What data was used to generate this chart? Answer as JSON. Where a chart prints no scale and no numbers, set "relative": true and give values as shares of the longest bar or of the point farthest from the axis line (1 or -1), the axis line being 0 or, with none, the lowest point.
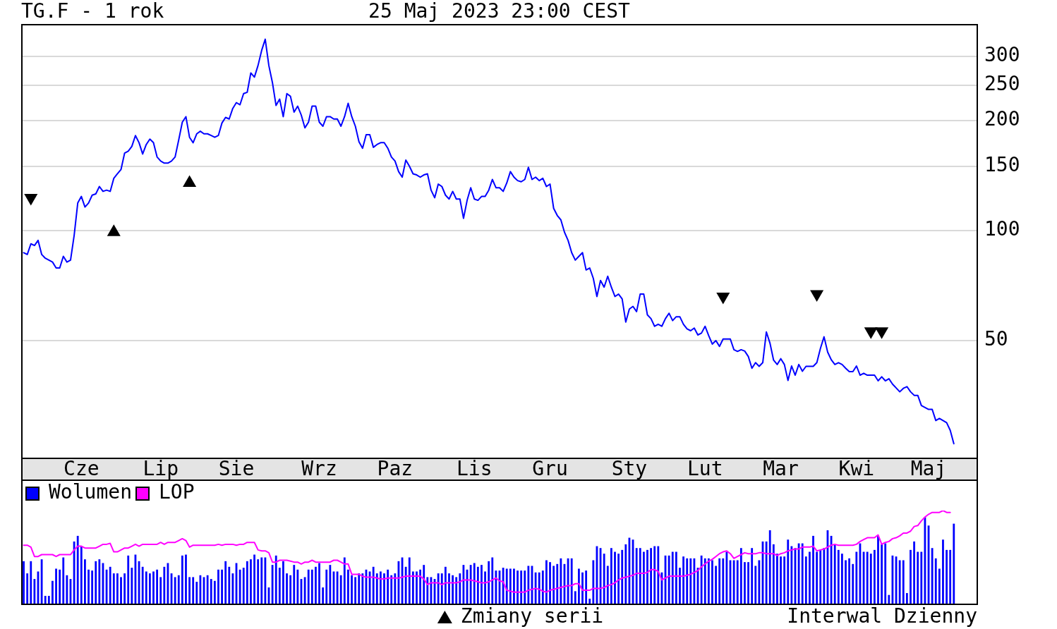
{
  "chart_data": [
    {
      "type": "line",
      "title": "TG.F - 1 rok",
      "subtitle": "25 Maj 2023 23:00 CEST",
      "categories": [
        null,
        null,
        null,
        null,
        null,
        null,
        null,
        null,
        null,
        null,
        null,
        null,
        null,
        null,
        null,
        null,
        "Cze",
        null,
        null,
        null,
        null,
        null,
        null,
        null,
        null,
        null,
        null,
        null,
        null,
        null,
        null,
        null,
        null,
        null,
        null,
        null,
        null,
        null,
        "Lip",
        null,
        null,
        null,
        null,
        null,
        null,
        null,
        null,
        null,
        null,
        null,
        null,
        null,
        null,
        null,
        null,
        null,
        null,
        null,
        null,
        "Sie",
        null,
        null,
        null,
        null,
        null,
        null,
        null,
        null,
        null,
        null,
        null,
        null,
        null,
        null,
        null,
        null,
        null,
        null,
        null,
        null,
        null,
        null,
        "Wrz",
        null,
        null,
        null,
        null,
        null,
        null,
        null,
        null,
        null,
        null,
        null,
        null,
        null,
        null,
        null,
        null,
        null,
        null,
        null,
        null,
        "Paz",
        null,
        null,
        null,
        null,
        null,
        null,
        null,
        null,
        null,
        null,
        null,
        null,
        null,
        null,
        null,
        null,
        null,
        null,
        null,
        null,
        null,
        "Lis",
        null,
        null,
        null,
        null,
        null,
        null,
        null,
        null,
        null,
        null,
        null,
        null,
        null,
        null,
        null,
        null,
        null,
        null,
        null,
        null,
        "Gru",
        null,
        null,
        null,
        null,
        null,
        null,
        null,
        null,
        null,
        null,
        null,
        null,
        null,
        null,
        null,
        null,
        null,
        null,
        null,
        null,
        null,
        "Sty",
        null,
        null,
        null,
        null,
        null,
        null,
        null,
        null,
        null,
        null,
        null,
        null,
        null,
        null,
        null,
        null,
        null,
        null,
        null,
        null,
        "Lut",
        null,
        null,
        null,
        null,
        null,
        null,
        null,
        null,
        null,
        null,
        null,
        null,
        null,
        null,
        null,
        null,
        null,
        null,
        null,
        null,
        "Mar",
        null,
        null,
        null,
        null,
        null,
        null,
        null,
        null,
        null,
        null,
        null,
        null,
        null,
        null,
        null,
        null,
        null,
        null,
        null,
        null,
        "Kwi",
        null,
        null,
        null,
        null,
        null,
        null,
        null,
        null,
        null,
        null,
        null,
        null,
        null,
        null,
        null,
        null,
        null,
        null,
        null,
        "Maj",
        null,
        null,
        null,
        null,
        null,
        null,
        null,
        null,
        null,
        null,
        null,
        null,
        null
      ],
      "series": [
        {
          "color": "#0000ff",
          "values": [
            87,
            86,
            92,
            91,
            94,
            86,
            84,
            83,
            82,
            79,
            79,
            85,
            82,
            83,
            97,
            119,
            124,
            116,
            119,
            125,
            126,
            132,
            128,
            129,
            128,
            139,
            143,
            147,
            163,
            165,
            170,
            182,
            174,
            162,
            172,
            178,
            174,
            159,
            155,
            153,
            153,
            155,
            159,
            177,
            198,
            205,
            180,
            174,
            184,
            187,
            184,
            184,
            182,
            180,
            182,
            197,
            204,
            202,
            216,
            224,
            221,
            237,
            239,
            270,
            263,
            283,
            311,
            334,
            283,
            254,
            220,
            229,
            205,
            237,
            233,
            211,
            219,
            207,
            191,
            198,
            219,
            219,
            198,
            193,
            205,
            205,
            202,
            202,
            193,
            205,
            223,
            205,
            193,
            175,
            168,
            183,
            183,
            169,
            172,
            174,
            174,
            168,
            159,
            155,
            145,
            140,
            156,
            150,
            143,
            142,
            140,
            142,
            143,
            129,
            123,
            134,
            132,
            125,
            122,
            128,
            122,
            122,
            108,
            121,
            131,
            122,
            121,
            124,
            124,
            129,
            138,
            131,
            131,
            128,
            135,
            145,
            140,
            137,
            136,
            138,
            149,
            138,
            140,
            137,
            139,
            132,
            134,
            115,
            110,
            107,
            99,
            94,
            87,
            83,
            85,
            87,
            78,
            79,
            74,
            66,
            73,
            70,
            75,
            70,
            66,
            67,
            65,
            56.2,
            61,
            62,
            60,
            67,
            67,
            58.8,
            57.4,
            54.7,
            55.4,
            54.7,
            57.4,
            59.4,
            56.7,
            58.1,
            58.1,
            55.4,
            53.8,
            53.2,
            54.1,
            51.8,
            52.4,
            54.7,
            51.6,
            48.9,
            50.0,
            48.2,
            50.5,
            50.5,
            50.5,
            47.2,
            46.7,
            47.2,
            46.8,
            45.2,
            42.0,
            43.5,
            42.5,
            43.5,
            52.8,
            49.2,
            44.2,
            43.0,
            44.6,
            43.0,
            38.9,
            42.6,
            40.2,
            43.0,
            41.2,
            42.5,
            42.5,
            42.5,
            43.5,
            47.6,
            51.2,
            46.5,
            44.3,
            43.0,
            43.5,
            43.0,
            42.0,
            41.1,
            41.1,
            42.6,
            40.2,
            40.7,
            40.2,
            40.2,
            40.2,
            38.8,
            39.8,
            38.8,
            39.3,
            38.0,
            37.1,
            36.2,
            37.0,
            37.4,
            36.2,
            35.4,
            35.4,
            33.2,
            32.8,
            32.4,
            32.4,
            30.2,
            30.6,
            30.2,
            29.8,
            28.4,
            26.1,
            null,
            null,
            null,
            null,
            null,
            null
          ]
        },
        {
          "name": "Zmiany serii",
          "type": "scatter",
          "marker": "triangle",
          "color": "#000000",
          "values": [
            null,
            null,
            123,
            null,
            null,
            null,
            null,
            null,
            null,
            null,
            null,
            null,
            null,
            null,
            null,
            null,
            null,
            null,
            null,
            null,
            null,
            null,
            null,
            null,
            null,
            99,
            null,
            null,
            null,
            null,
            null,
            null,
            null,
            null,
            null,
            null,
            null,
            null,
            null,
            null,
            null,
            null,
            null,
            null,
            null,
            null,
            135,
            null,
            null,
            null,
            null,
            null,
            null,
            null,
            null,
            null,
            null,
            null,
            null,
            null,
            null,
            null,
            null,
            null,
            null,
            null,
            null,
            null,
            null,
            null,
            null,
            null,
            null,
            null,
            null,
            null,
            null,
            null,
            null,
            null,
            null,
            null,
            null,
            null,
            null,
            null,
            null,
            null,
            null,
            null,
            null,
            null,
            null,
            null,
            null,
            null,
            null,
            null,
            null,
            null,
            null,
            null,
            null,
            null,
            null,
            null,
            null,
            null,
            null,
            null,
            null,
            null,
            null,
            null,
            null,
            null,
            null,
            null,
            null,
            null,
            null,
            null,
            null,
            null,
            null,
            null,
            null,
            null,
            null,
            null,
            null,
            null,
            null,
            null,
            null,
            null,
            null,
            null,
            null,
            null,
            null,
            null,
            null,
            null,
            null,
            null,
            null,
            null,
            null,
            null,
            null,
            null,
            null,
            null,
            null,
            null,
            null,
            null,
            null,
            null,
            null,
            null,
            null,
            null,
            null,
            null,
            null,
            null,
            null,
            null,
            null,
            null,
            null,
            null,
            null,
            null,
            null,
            null,
            null,
            null,
            null,
            null,
            null,
            null,
            null,
            null,
            null,
            null,
            null,
            null,
            null,
            null,
            null,
            null,
            66,
            null,
            null,
            null,
            null,
            null,
            null,
            null,
            null,
            null,
            null,
            null,
            null,
            null,
            null,
            null,
            null,
            null,
            null,
            null,
            null,
            null,
            null,
            null,
            null,
            null,
            67,
            null,
            null,
            null,
            null,
            null,
            null,
            null,
            null,
            null,
            null,
            null,
            null,
            null,
            null,
            53,
            null,
            null,
            53,
            null,
            null,
            null,
            null,
            null,
            null,
            null,
            null,
            null,
            null,
            null,
            null,
            null,
            null,
            null,
            null,
            null,
            null,
            null,
            null,
            null,
            null,
            null,
            null,
            null,
            null
          ]
        }
      ],
      "log": true,
      "ylim": [
        23.8,
        366
      ],
      "yticks": [
        50,
        100,
        150,
        200,
        250,
        300
      ],
      "grid": "y",
      "legend": "bottom",
      "annotations": [
        "Interwal Dzienny"
      ]
    },
    {
      "type": "bar",
      "categories": [
        null,
        null,
        null,
        null,
        null,
        null,
        null,
        null,
        null,
        null,
        null,
        null,
        null,
        null,
        null,
        null,
        null,
        null,
        null,
        null,
        null,
        null,
        null,
        null,
        null,
        null,
        null,
        null,
        null,
        null,
        null,
        null,
        null,
        null,
        null,
        null,
        null,
        null,
        null,
        null,
        null,
        null,
        null,
        null,
        null,
        null,
        null,
        null,
        null,
        null,
        null,
        null,
        null,
        null,
        null,
        null,
        null,
        null,
        null,
        null,
        null,
        null,
        null,
        null,
        null,
        null,
        null,
        null,
        null,
        null,
        null,
        null,
        null,
        null,
        null,
        null,
        null,
        null,
        null,
        null,
        null,
        null,
        null,
        null,
        null,
        null,
        null,
        null,
        null,
        null,
        null,
        null,
        null,
        null,
        null,
        null,
        null,
        null,
        null,
        null,
        null,
        null,
        null,
        null,
        null,
        null,
        null,
        null,
        null,
        null,
        null,
        null,
        null,
        null,
        null,
        null,
        null,
        null,
        null,
        null,
        null,
        null,
        null,
        null,
        null,
        null,
        null,
        null,
        null,
        null,
        null,
        null,
        null,
        null,
        null,
        null,
        null,
        null,
        null,
        null,
        null,
        null,
        null,
        null,
        null,
        null,
        null,
        null,
        null,
        null,
        null,
        null,
        null,
        null,
        null,
        null,
        null,
        null,
        null,
        null,
        null,
        null,
        null,
        null,
        null,
        null,
        null,
        null,
        null,
        null,
        null,
        null,
        null,
        null,
        null,
        null,
        null,
        null,
        null,
        null,
        null,
        null,
        null,
        null,
        null,
        null,
        null,
        null,
        null,
        null,
        null,
        null,
        null,
        null,
        null,
        null,
        null,
        null,
        null,
        null,
        null,
        null,
        null,
        null,
        null,
        null,
        null,
        null,
        null,
        null,
        null,
        null,
        null,
        null,
        null,
        null,
        null,
        null,
        null,
        null,
        null,
        null,
        null,
        null,
        null,
        null,
        null,
        null,
        null,
        null,
        null,
        null,
        null,
        null,
        null,
        null,
        null,
        null,
        null,
        null,
        null,
        null,
        null,
        null,
        null,
        null,
        null,
        null,
        null,
        null,
        null,
        null,
        null,
        null,
        null,
        null,
        null,
        null,
        null,
        null,
        null,
        null,
        null,
        null,
        null
      ],
      "series": [
        {
          "name": "Wolumen",
          "color": "#0000ff",
          "values": [
            0.46,
            0.33,
            0.46,
            0.27,
            0.35,
            0.48,
            0.09,
            0.09,
            0.25,
            0.38,
            0.37,
            0.5,
            0.31,
            0.27,
            0.67,
            0.73,
            0.62,
            0.48,
            0.37,
            0.36,
            0.46,
            0.48,
            0.44,
            0.37,
            0.4,
            0.33,
            0.33,
            0.29,
            0.33,
            0.52,
            0.39,
            0.53,
            0.46,
            0.4,
            0.35,
            0.33,
            0.35,
            0.37,
            0.29,
            0.4,
            0.44,
            0.33,
            0.29,
            0.31,
            0.52,
            0.53,
            0.29,
            0.29,
            0.24,
            0.31,
            0.29,
            0.31,
            0.27,
            0.25,
            0.37,
            0.37,
            0.46,
            0.4,
            0.33,
            0.44,
            0.37,
            0.39,
            0.46,
            0.48,
            0.53,
            0.48,
            0.5,
            0.5,
            0.18,
            0.42,
            0.52,
            0.39,
            0.46,
            0.33,
            0.31,
            0.42,
            0.37,
            0.27,
            0.29,
            0.37,
            0.37,
            0.4,
            0.44,
            0.18,
            0.37,
            0.42,
            0.35,
            0.35,
            0.31,
            0.5,
            0.37,
            0.31,
            0.29,
            0.33,
            0.33,
            0.37,
            0.35,
            0.4,
            0.33,
            0.35,
            0.33,
            0.37,
            0.31,
            0.33,
            0.46,
            0.5,
            0.4,
            0.5,
            0.35,
            0.35,
            0.37,
            0.42,
            0.29,
            0.29,
            0.27,
            0.33,
            0.33,
            0.4,
            0.33,
            0.31,
            0.29,
            0.33,
            0.42,
            0.37,
            0.42,
            0.44,
            0.4,
            0.42,
            0.35,
            0.46,
            0.5,
            0.36,
            0.36,
            0.39,
            0.38,
            0.38,
            0.38,
            0.36,
            0.36,
            0.36,
            0.41,
            0.41,
            0.34,
            0.34,
            0.36,
            0.47,
            0.45,
            0.41,
            0.43,
            0.49,
            0.43,
            0.49,
            0.49,
            0.14,
            0.38,
            0.34,
            0.36,
            0.06,
            0.47,
            0.62,
            0.6,
            0.54,
            0.41,
            0.6,
            0.56,
            0.54,
            0.58,
            0.64,
            0.71,
            0.69,
            0.6,
            0.6,
            0.56,
            0.58,
            0.6,
            0.62,
            0.62,
            0.34,
            0.52,
            0.52,
            0.56,
            0.56,
            0.39,
            0.51,
            0.49,
            0.49,
            0.49,
            0.39,
            0.52,
            0.49,
            0.49,
            0.47,
            0.41,
            0.49,
            0.49,
            0.56,
            0.47,
            0.47,
            0.47,
            0.6,
            0.45,
            0.45,
            0.6,
            0.41,
            0.47,
            0.67,
            0.67,
            0.79,
            0.64,
            0.54,
            0.51,
            0.51,
            0.69,
            0.62,
            0.6,
            0.65,
            0.65,
            0.51,
            0.56,
            0.73,
            0.56,
            0.58,
            0.6,
            0.79,
            0.73,
            0.64,
            0.58,
            0.54,
            0.47,
            0.49,
            0.43,
            0.56,
            0.65,
            0.56,
            0.56,
            0.54,
            0.58,
            0.73,
            0.64,
            0.65,
            0.1,
            0.52,
            0.51,
            0.47,
            0.47,
            0.12,
            0.58,
            0.67,
            0.56,
            0.56,
            0.93,
            0.84,
            0.6,
            0.49,
            0.38,
            0.69,
            0.58,
            0.58,
            0.86,
            null,
            null,
            null,
            null,
            null,
            null
          ]
        },
        {
          "name": "LOP",
          "type": "line",
          "color": "#ff00ff",
          "values": [
            0.63,
            0.63,
            0.61,
            0.51,
            0.51,
            0.53,
            0.53,
            0.53,
            0.53,
            0.51,
            0.53,
            0.53,
            0.53,
            0.53,
            0.58,
            0.62,
            0.62,
            0.6,
            0.6,
            0.6,
            0.6,
            0.62,
            0.64,
            0.64,
            0.65,
            0.56,
            0.56,
            0.58,
            0.6,
            0.6,
            0.62,
            0.64,
            0.62,
            0.64,
            0.64,
            0.64,
            0.64,
            0.64,
            0.66,
            0.64,
            0.66,
            0.66,
            0.66,
            0.68,
            0.7,
            0.68,
            0.61,
            0.63,
            0.63,
            0.63,
            0.63,
            0.63,
            0.63,
            0.63,
            0.64,
            0.63,
            0.64,
            0.64,
            0.64,
            0.63,
            0.64,
            0.64,
            0.66,
            0.66,
            0.66,
            0.58,
            0.57,
            0.57,
            0.55,
            0.45,
            0.45,
            0.47,
            0.47,
            0.47,
            0.46,
            0.45,
            0.45,
            0.43,
            0.45,
            0.45,
            0.47,
            0.45,
            0.45,
            0.45,
            0.45,
            0.45,
            0.47,
            0.47,
            0.45,
            0.43,
            0.43,
            0.32,
            0.32,
            0.32,
            0.3,
            0.29,
            0.29,
            0.29,
            0.28,
            0.27,
            0.27,
            0.28,
            0.28,
            0.28,
            0.28,
            0.29,
            0.3,
            0.3,
            0.3,
            0.3,
            0.3,
            0.27,
            0.21,
            0.23,
            0.23,
            0.23,
            0.21,
            0.23,
            0.23,
            0.23,
            0.23,
            0.24,
            0.26,
            0.26,
            0.26,
            0.25,
            0.24,
            0.23,
            0.23,
            0.24,
            0.26,
            0.28,
            0.25,
            0.24,
            0.15,
            0.14,
            0.13,
            0.13,
            0.13,
            0.13,
            0.15,
            0.16,
            0.17,
            0.16,
            0.14,
            0.13,
            0.15,
            0.16,
            0.17,
            0.18,
            0.19,
            0.2,
            0.2,
            0.22,
            0.22,
            0.15,
            0.15,
            0.15,
            0.17,
            0.17,
            0.17,
            0.18,
            0.2,
            0.21,
            0.23,
            0.26,
            0.28,
            0.29,
            0.3,
            0.31,
            0.33,
            0.33,
            0.33,
            0.34,
            0.37,
            0.37,
            0.35,
            0.26,
            0.28,
            0.3,
            0.3,
            0.3,
            0.3,
            0.3,
            0.31,
            0.32,
            0.34,
            0.36,
            0.4,
            0.43,
            0.46,
            0.48,
            0.51,
            0.54,
            0.56,
            0.57,
            0.54,
            0.49,
            0.51,
            0.53,
            0.55,
            0.54,
            0.54,
            0.54,
            0.55,
            0.55,
            0.54,
            0.54,
            0.54,
            0.52,
            0.54,
            0.55,
            0.57,
            0.58,
            0.59,
            0.59,
            0.61,
            0.61,
            0.61,
            0.62,
            0.57,
            0.58,
            0.59,
            0.61,
            0.63,
            0.64,
            0.63,
            0.63,
            0.63,
            0.63,
            0.63,
            0.64,
            0.67,
            0.69,
            0.71,
            0.71,
            0.71,
            0.74,
            0.64,
            0.66,
            0.67,
            0.7,
            0.71,
            0.73,
            0.76,
            0.76,
            0.78,
            0.83,
            0.84,
            0.89,
            0.93,
            0.96,
            0.98,
            0.98,
            0.98,
            1,
            0.98,
            0.98,
            null,
            null,
            null,
            null,
            null,
            null,
            null
          ]
        }
      ],
      "relative": true,
      "legend": "top left"
    }
  ]
}
